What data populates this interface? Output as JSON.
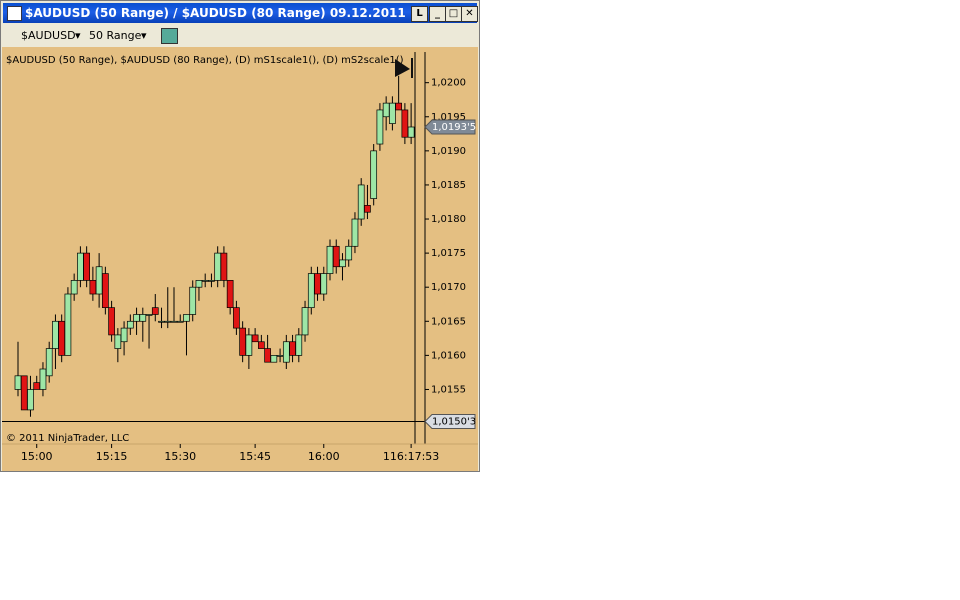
{
  "window": {
    "title": "$AUDUSD (50 Range) / $AUDUSD (80 Range)  09.12.2011",
    "link_button": "L"
  },
  "toolbar": {
    "instrument": "$AUDUSD",
    "period": "50 Range"
  },
  "chart_data": {
    "type": "candlestick",
    "subtitle": "$AUDUSD (50 Range), $AUDUSD (80 Range), (D) mS1scale1(), (D) mS2scale1()",
    "annotation": "© 2011 NinjaTrader, LLC",
    "up_color": "#9ee6a6",
    "down_color": "#e01414",
    "open": [
      1.0155,
      1.0157,
      1.0152,
      1.0156,
      1.0155,
      1.0157,
      1.0161,
      1.0165,
      1.016,
      1.0169,
      1.0171,
      1.0175,
      1.0171,
      1.0169,
      1.0172,
      1.0167,
      1.0161,
      1.0162,
      1.0164,
      1.0165,
      1.0165,
      1.0166,
      1.0167,
      1.0165,
      1.0165,
      1.0165,
      1.0165,
      1.0165,
      1.0166,
      1.017,
      1.0171,
      1.0171,
      1.0171,
      1.0175,
      1.0171,
      1.0167,
      1.0164,
      1.016,
      1.0163,
      1.0162,
      1.0161,
      1.0159,
      1.016,
      1.0159,
      1.0162,
      1.016,
      1.0163,
      1.0167,
      1.0172,
      1.0169,
      1.0172,
      1.0176,
      1.0173,
      1.0174,
      1.0176,
      1.018,
      1.0182,
      1.0183,
      1.0191,
      1.0195,
      1.0194,
      1.0197,
      1.0196,
      1.0192
    ],
    "high": [
      1.0162,
      1.0157,
      1.0157,
      1.0157,
      1.0159,
      1.0162,
      1.0166,
      1.0166,
      1.017,
      1.0172,
      1.0176,
      1.0176,
      1.0173,
      1.0175,
      1.0173,
      1.0168,
      1.0164,
      1.0165,
      1.0166,
      1.0167,
      1.0167,
      1.0166,
      1.0169,
      1.0167,
      1.017,
      1.017,
      1.0166,
      1.0166,
      1.0171,
      1.0171,
      1.0172,
      1.0172,
      1.0176,
      1.0176,
      1.0171,
      1.0168,
      1.0165,
      1.0164,
      1.0164,
      1.0163,
      1.0163,
      1.016,
      1.0161,
      1.0163,
      1.0163,
      1.0164,
      1.0168,
      1.0173,
      1.0173,
      1.0173,
      1.0177,
      1.0177,
      1.0175,
      1.0177,
      1.0181,
      1.0186,
      1.0185,
      1.0191,
      1.0197,
      1.0198,
      1.0198,
      1.0201,
      1.0197,
      1.0197
    ],
    "low": [
      1.0154,
      1.0152,
      1.0151,
      1.0155,
      1.0154,
      1.0156,
      1.0158,
      1.0159,
      1.016,
      1.0168,
      1.017,
      1.017,
      1.0168,
      1.0167,
      1.0166,
      1.0162,
      1.0159,
      1.016,
      1.0163,
      1.0163,
      1.0162,
      1.0161,
      1.0165,
      1.0164,
      1.0164,
      1.0165,
      1.0165,
      1.016,
      1.0165,
      1.0168,
      1.017,
      1.017,
      1.017,
      1.017,
      1.0166,
      1.0163,
      1.0159,
      1.0158,
      1.0162,
      1.0161,
      1.0159,
      1.0159,
      1.0159,
      1.0158,
      1.0159,
      1.0159,
      1.0162,
      1.0166,
      1.0168,
      1.0168,
      1.0171,
      1.0172,
      1.0171,
      1.0173,
      1.0175,
      1.0179,
      1.018,
      1.0182,
      1.019,
      1.0193,
      1.0193,
      1.0196,
      1.0191,
      1.0191
    ],
    "close": [
      1.0157,
      1.0152,
      1.0155,
      1.0155,
      1.0158,
      1.0161,
      1.0165,
      1.016,
      1.0169,
      1.0171,
      1.0175,
      1.0171,
      1.0169,
      1.0173,
      1.0167,
      1.0163,
      1.0163,
      1.0164,
      1.0165,
      1.0166,
      1.0166,
      1.0166,
      1.0166,
      1.0165,
      1.0165,
      1.0165,
      1.0165,
      1.0166,
      1.017,
      1.0171,
      1.0171,
      1.0171,
      1.0175,
      1.0171,
      1.0167,
      1.0164,
      1.016,
      1.0163,
      1.0162,
      1.0161,
      1.0159,
      1.016,
      1.016,
      1.0162,
      1.016,
      1.0163,
      1.0167,
      1.0172,
      1.0169,
      1.0172,
      1.0176,
      1.0173,
      1.0174,
      1.0176,
      1.018,
      1.0185,
      1.0181,
      1.019,
      1.0196,
      1.0197,
      1.0197,
      1.0196,
      1.0192,
      1.01935
    ],
    "xticks": [
      {
        "value": 3,
        "label": "15:00"
      },
      {
        "value": 15,
        "label": "15:15"
      },
      {
        "value": 26,
        "label": "15:30"
      },
      {
        "value": 38,
        "label": "15:45"
      },
      {
        "value": 49,
        "label": "16:00"
      },
      {
        "value": 63,
        "label": "116:17:53"
      }
    ],
    "ylim": [
      1.0147,
      1.02045
    ],
    "yticks": [
      {
        "value": 1.0155,
        "label": "1,0155"
      },
      {
        "value": 1.016,
        "label": "1,0160"
      },
      {
        "value": 1.0165,
        "label": "1,0165"
      },
      {
        "value": 1.017,
        "label": "1,0170"
      },
      {
        "value": 1.0175,
        "label": "1,0175"
      },
      {
        "value": 1.018,
        "label": "1,0180"
      },
      {
        "value": 1.0185,
        "label": "1,0185"
      },
      {
        "value": 1.019,
        "label": "1,0190"
      },
      {
        "value": 1.0195,
        "label": "1,0195"
      },
      {
        "value": 1.02,
        "label": "1,0200"
      }
    ],
    "price_markers": [
      {
        "value": 1.01935,
        "label": "1,0193'5"
      },
      {
        "value": 1.01503,
        "label": "1,0150'3"
      }
    ]
  }
}
